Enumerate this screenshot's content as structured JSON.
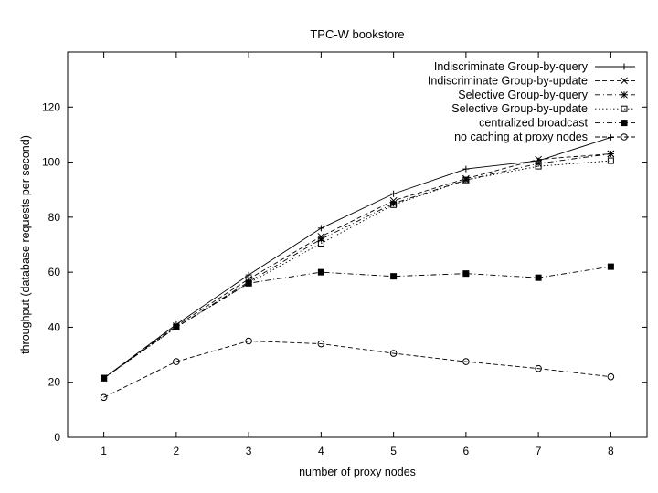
{
  "chart_data": {
    "type": "line",
    "title": "TPC-W bookstore",
    "xlabel": "number of proxy nodes",
    "ylabel": "throughput (database requests per second)",
    "x": [
      1,
      2,
      3,
      4,
      5,
      6,
      7,
      8
    ],
    "xlim": [
      0.5,
      8.5
    ],
    "ylim": [
      0,
      140
    ],
    "xticks": [
      "1",
      "2",
      "3",
      "4",
      "5",
      "6",
      "7",
      "8"
    ],
    "yticks": [
      "0",
      "20",
      "40",
      "60",
      "80",
      "100",
      "120"
    ],
    "grid": false,
    "legend_position": "top-right",
    "series": [
      {
        "name": "Indiscriminate Group-by-query",
        "marker": "plus",
        "dash": "solid",
        "values": [
          21.5,
          41,
          59,
          76,
          88.5,
          97.5,
          100.5,
          109
        ]
      },
      {
        "name": "Indiscriminate Group-by-update",
        "marker": "cross",
        "dash": "dashed",
        "values": [
          21.5,
          40.5,
          57.5,
          73,
          86,
          94,
          101,
          103
        ]
      },
      {
        "name": "Selective Group-by-query",
        "marker": "star",
        "dash": "dashdot",
        "values": [
          21.5,
          40,
          56.5,
          72,
          85,
          93.5,
          99.5,
          103
        ]
      },
      {
        "name": "Selective Group-by-update",
        "marker": "square-open",
        "dash": "dotted",
        "values": [
          21.5,
          40,
          56,
          70.5,
          84.5,
          93.5,
          98.5,
          100.5
        ]
      },
      {
        "name": "centralized broadcast",
        "marker": "square-filled",
        "dash": "dashdot",
        "values": [
          21.5,
          40,
          56,
          60,
          58.5,
          59.5,
          58,
          62
        ]
      },
      {
        "name": "no caching at proxy nodes",
        "marker": "circle-open",
        "dash": "dashed",
        "values": [
          14.5,
          27.5,
          35,
          34,
          30.5,
          27.5,
          25,
          22
        ]
      }
    ]
  }
}
